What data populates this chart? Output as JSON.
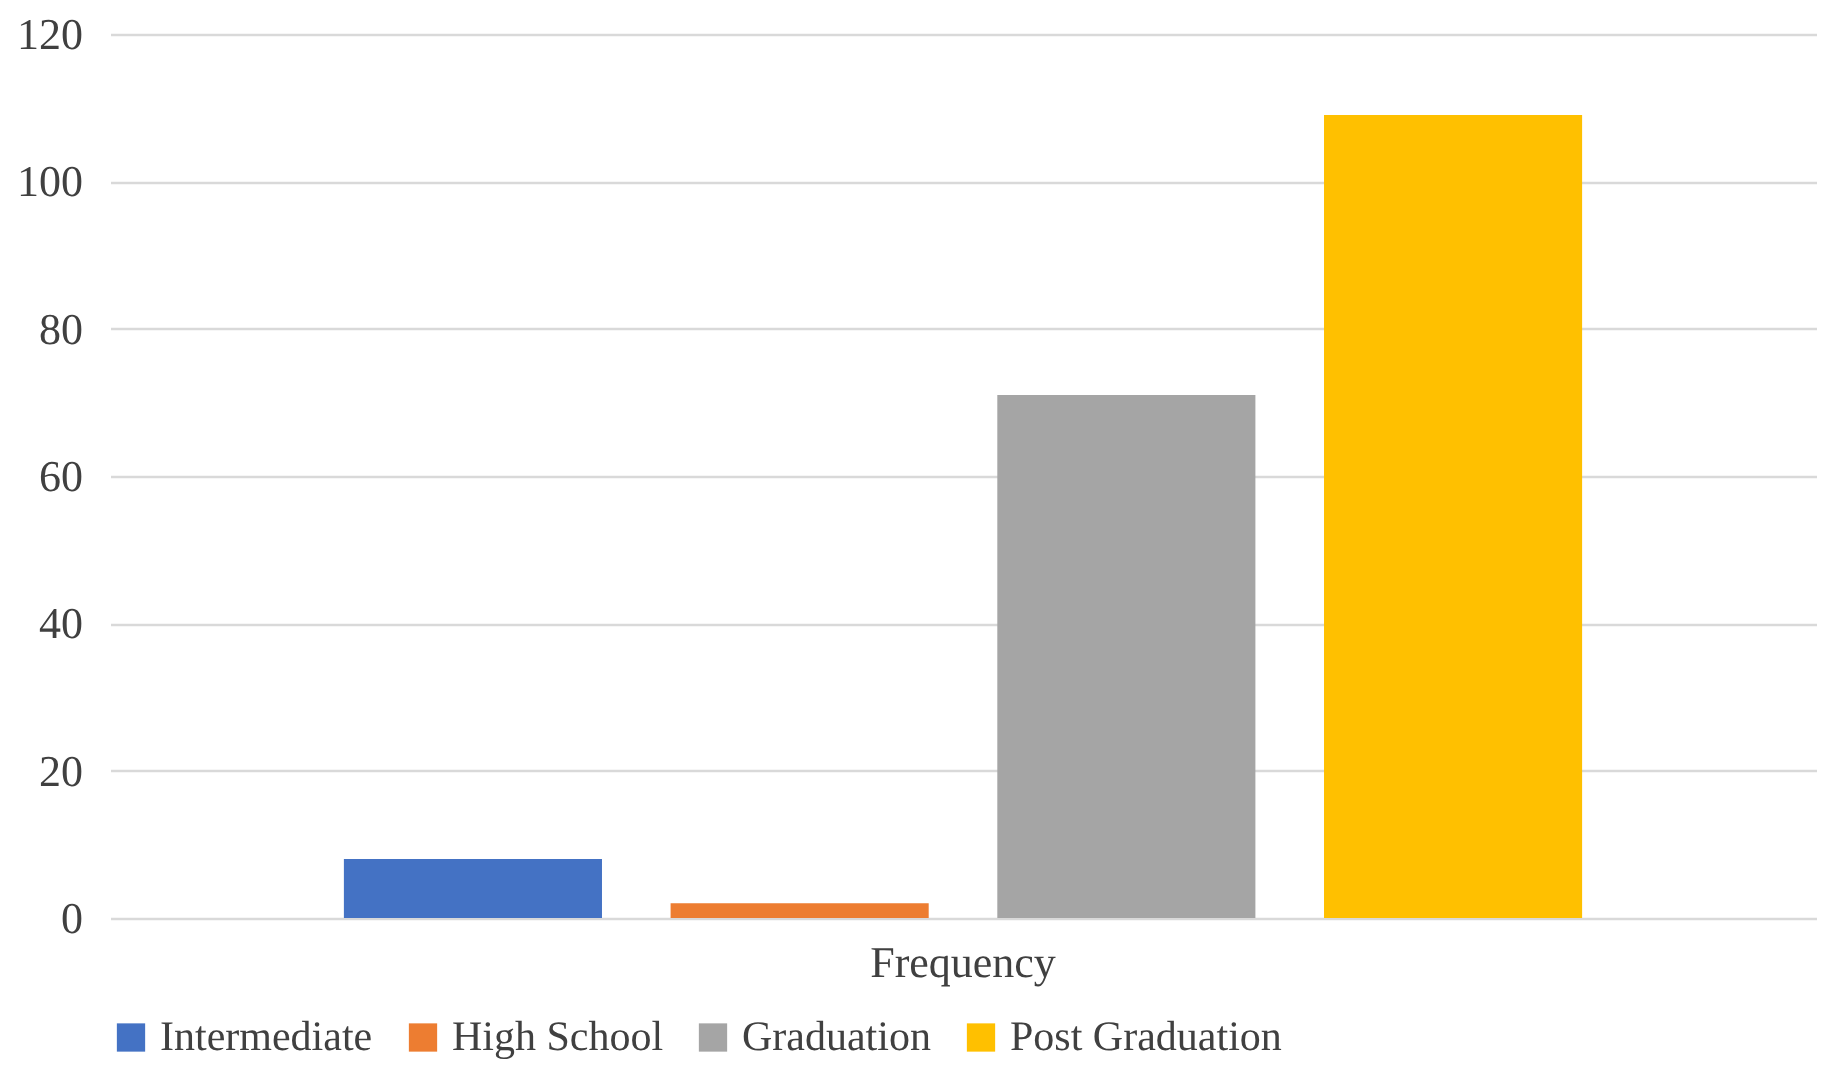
{
  "chart_data": {
    "type": "bar",
    "categories": [
      "Frequency"
    ],
    "series": [
      {
        "name": "Intermediate",
        "color": "#4472c4",
        "values": [
          8
        ]
      },
      {
        "name": "High School",
        "color": "#ed7d31",
        "values": [
          2
        ]
      },
      {
        "name": "Graduation",
        "color": "#a5a5a5",
        "values": [
          71
        ]
      },
      {
        "name": "Post Graduation",
        "color": "#ffc000",
        "values": [
          109
        ]
      }
    ],
    "ylim": [
      0,
      120
    ],
    "yticks": [
      0,
      20,
      40,
      60,
      80,
      100,
      120
    ],
    "grid": "y",
    "legend": "bottom"
  }
}
